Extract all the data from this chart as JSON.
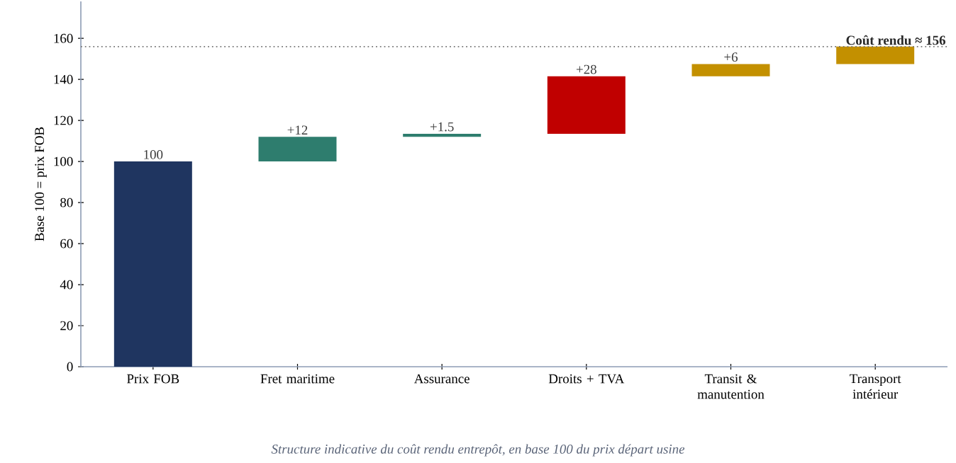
{
  "chart_data": {
    "type": "bar",
    "ylabel": "Base 100 = prix FOB",
    "categories": [
      "Prix FOB",
      "Fret maritime",
      "Assurance",
      "Droits + TVA",
      "Transit & manutention",
      "Transport intérieur"
    ],
    "values": [
      100,
      12,
      1.5,
      28,
      6,
      8.5
    ],
    "base": [
      0,
      100,
      112,
      113.5,
      141.5,
      147.5
    ],
    "colors": [
      "#1f3560",
      "#2e7d6e",
      "#2e7d6e",
      "#c00000",
      "#c39000",
      "#c39000"
    ],
    "value_labels": [
      "100",
      "+12",
      "+1.5",
      "+28",
      "+6",
      null
    ],
    "ylim": [
      0,
      178
    ],
    "yticks": [
      0,
      20,
      40,
      60,
      80,
      100,
      120,
      140,
      160
    ],
    "ref_lines": [
      {
        "axis": "y",
        "value": 156,
        "label": "Coût rendu ≈ 156",
        "color": "#777777",
        "line_style": "dotted"
      }
    ],
    "annotations": [
      "Structure indicative du coût rendu entrepôt, en base 100 du prix départ usine"
    ]
  }
}
